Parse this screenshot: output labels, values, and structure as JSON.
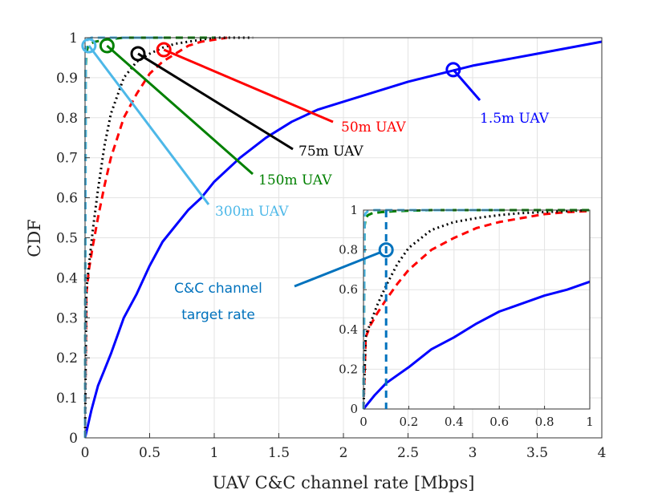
{
  "chart_data": {
    "type": "line",
    "title": "",
    "xlabel": "UAV C&C channel rate [Mbps]",
    "ylabel": "CDF",
    "xlim": [
      0,
      4
    ],
    "ylim": [
      0,
      1
    ],
    "grid": true,
    "xticks": [
      "0",
      "0.5",
      "1",
      "1.5",
      "2",
      "2.5",
      "3",
      "3.5",
      "4"
    ],
    "yticks": [
      "0",
      "0.1",
      "0.2",
      "0.3",
      "0.4",
      "0.5",
      "0.6",
      "0.7",
      "0.8",
      "0.9",
      "1"
    ],
    "series": [
      {
        "name": "1.5m UAV",
        "color": "#0000ff",
        "dash": "solid",
        "x": [
          0,
          0.05,
          0.1,
          0.15,
          0.2,
          0.3,
          0.4,
          0.5,
          0.6,
          0.7,
          0.8,
          0.9,
          1.0,
          1.2,
          1.4,
          1.6,
          1.8,
          2.0,
          2.5,
          3.0,
          3.5,
          4.0
        ],
        "y": [
          0,
          0.07,
          0.13,
          0.17,
          0.21,
          0.3,
          0.36,
          0.43,
          0.49,
          0.53,
          0.57,
          0.6,
          0.64,
          0.7,
          0.75,
          0.79,
          0.82,
          0.84,
          0.89,
          0.93,
          0.96,
          0.99
        ]
      },
      {
        "name": "50m UAV",
        "color": "#ff0000",
        "dash": "dashed",
        "x": [
          0,
          0.01,
          0.03,
          0.06,
          0.1,
          0.15,
          0.2,
          0.3,
          0.4,
          0.5,
          0.6,
          0.7,
          0.8,
          0.9,
          1.0,
          1.1
        ],
        "y": [
          0,
          0.36,
          0.42,
          0.48,
          0.55,
          0.63,
          0.7,
          0.8,
          0.86,
          0.91,
          0.94,
          0.96,
          0.98,
          0.99,
          0.995,
          1.0
        ]
      },
      {
        "name": "75m UAV",
        "color": "#000000",
        "dash": "dotted",
        "x": [
          0,
          0.01,
          0.03,
          0.06,
          0.1,
          0.15,
          0.2,
          0.3,
          0.4,
          0.5,
          0.6,
          0.7,
          0.8,
          1.0,
          1.3
        ],
        "y": [
          0,
          0.37,
          0.43,
          0.52,
          0.62,
          0.73,
          0.81,
          0.9,
          0.94,
          0.96,
          0.975,
          0.985,
          0.99,
          1.0,
          1.0
        ]
      },
      {
        "name": "150m UAV",
        "color": "#008000",
        "dash": "dashed",
        "x": [
          0,
          0.005,
          0.01,
          0.02,
          0.04,
          0.08,
          0.15,
          0.3,
          0.5,
          1.0
        ],
        "y": [
          0,
          0.92,
          0.96,
          0.975,
          0.985,
          0.99,
          0.995,
          1.0,
          1.0,
          1.0
        ]
      },
      {
        "name": "300m UAV",
        "color": "#4db8e8",
        "dash": "dashed",
        "x": [
          0,
          0.005,
          0.01,
          0.02,
          0.05,
          0.1,
          0.2,
          0.4,
          0.6
        ],
        "y": [
          0,
          0.97,
          0.985,
          0.995,
          1.0,
          1.0,
          1.0,
          1.0,
          1.0
        ]
      }
    ],
    "annotations": [
      {
        "text": "1.5m UAV",
        "color": "#0000ff",
        "marker_x": 2.85,
        "marker_y": 0.92
      },
      {
        "text": "50m UAV",
        "color": "#ff0000",
        "marker_x": 0.61,
        "marker_y": 0.97
      },
      {
        "text": "75m UAV",
        "color": "#000000",
        "marker_x": 0.41,
        "marker_y": 0.96
      },
      {
        "text": "150m UAV",
        "color": "#008000",
        "marker_x": 0.17,
        "marker_y": 0.98
      },
      {
        "text": "300m UAV",
        "color": "#4db8e8",
        "marker_x": 0.03,
        "marker_y": 0.98
      }
    ],
    "inset": {
      "xlim": [
        0,
        1
      ],
      "ylim": [
        0,
        1
      ],
      "xticks": [
        "0",
        "0.2",
        "0.4",
        "0.6",
        "0.8",
        "1"
      ],
      "yticks": [
        "0",
        "0.2",
        "0.4",
        "0.6",
        "0.8",
        "1"
      ],
      "target_rate": 0.1,
      "target_label_line1": "C&C channel",
      "target_label_line2": "target rate",
      "target_color": "#0072bd",
      "marker_y": 0.8
    }
  }
}
